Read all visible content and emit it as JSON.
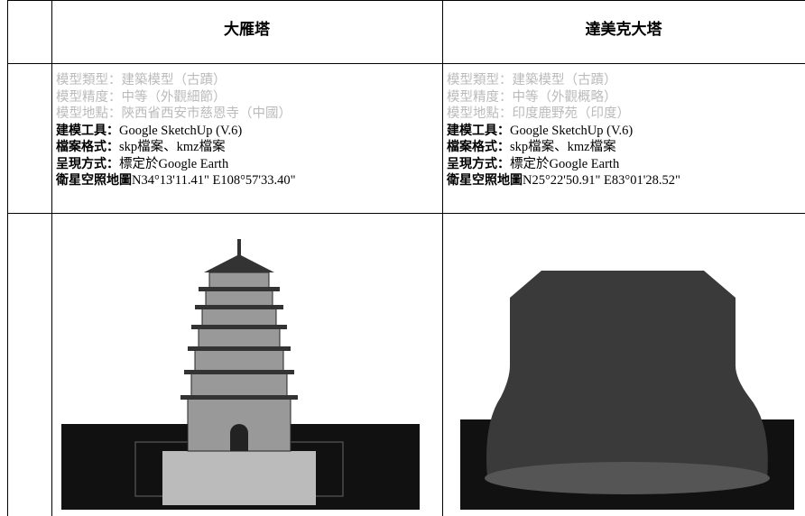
{
  "table": {
    "headers": [
      "大雁塔",
      "達美克大塔"
    ],
    "rows": [
      {
        "lines": [
          {
            "label": "模型類型：",
            "value": "建築模型（古蹟）"
          },
          {
            "label": "模型精度：",
            "value": "中等（外觀細節）"
          },
          {
            "label": "模型地點：",
            "value": "陝西省西安市慈恩寺（中國）"
          },
          {
            "label": "建模工具：",
            "value": "Google SketchUp (V.6)"
          },
          {
            "label": "檔案格式：",
            "value": "skp檔案、kmz檔案"
          },
          {
            "label": "呈現方式：",
            "value": "標定於Google Earth"
          },
          {
            "label": "衛星空照地圖",
            "value": "N34°13'11.41\" E108°57'33.40\""
          }
        ]
      },
      {
        "lines": [
          {
            "label": "模型類型：",
            "value": "建築模型（古蹟）"
          },
          {
            "label": "模型精度：",
            "value": "中等（外觀概略）"
          },
          {
            "label": "模型地點：",
            "value": "印度鹿野苑（印度）"
          },
          {
            "label": "建模工具：",
            "value": "Google SketchUp (V.6)"
          },
          {
            "label": "檔案格式：",
            "value": "skp檔案、kmz檔案"
          },
          {
            "label": "呈現方式：",
            "value": "標定於Google Earth"
          },
          {
            "label": "衛星空照地圖",
            "value": "N25°22'50.91\" E83°01'28.52\""
          }
        ]
      }
    ]
  }
}
